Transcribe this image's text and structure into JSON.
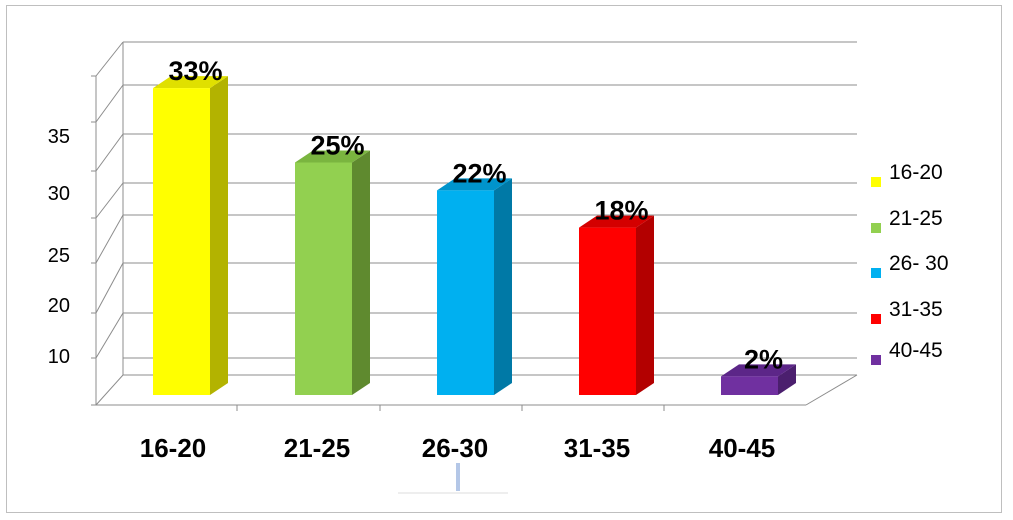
{
  "chart_data": {
    "type": "bar",
    "categories": [
      "16-20",
      "21-25",
      "26-30",
      "31-35",
      "40-45"
    ],
    "values": [
      33,
      25,
      22,
      18,
      2
    ],
    "data_labels": [
      "33%",
      "25%",
      "22%",
      "18%",
      "2%"
    ],
    "y_ticks": [
      "10",
      "20",
      "25",
      "30",
      "35"
    ],
    "legend": [
      "16-20",
      "21-25",
      "26- 30",
      "31-35",
      "40-45"
    ],
    "legend_position": "right",
    "colors": [
      "#ffff00",
      "#92d050",
      "#00b0f0",
      "#ff0000",
      "#7030a0"
    ],
    "side_colors": [
      "#b3b300",
      "#5f8a2f",
      "#0079a6",
      "#b30000",
      "#4b1f6e"
    ],
    "top_colors": [
      "#e0e000",
      "#7ab53f",
      "#0094cc",
      "#d40000",
      "#5c2688"
    ],
    "grid": true,
    "style": "3d-column"
  }
}
